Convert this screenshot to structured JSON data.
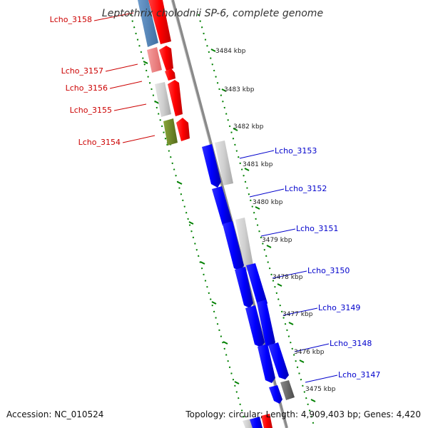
{
  "title": "Leptothrix cholodnii SP-6, complete genome",
  "footer": {
    "accession": "Accession: NC_010524",
    "summary": "Topology: circular; Length: 4,909,403 bp; Genes: 4,420"
  },
  "ticks": [
    "3484 kbp",
    "3483 kbp",
    "3482 kbp",
    "3481 kbp",
    "3480 kbp",
    "3479 kbp",
    "3478 kbp",
    "3477 kbp",
    "3476 kbp",
    "3475 kbp"
  ],
  "genes_left": [
    "Lcho_3158",
    "Lcho_3157",
    "Lcho_3156",
    "Lcho_3155",
    "Lcho_3154"
  ],
  "genes_right": [
    "Lcho_3153",
    "Lcho_3152",
    "Lcho_3151",
    "Lcho_3150",
    "Lcho_3149",
    "Lcho_3148",
    "Lcho_3147"
  ],
  "colors": {
    "forward_strand": "#ff0000",
    "reverse_strand": "#0000ff",
    "backbone": "#8a8a8a",
    "ticks": "#008000",
    "left_label": "#cc0000",
    "right_label": "#0000cc"
  }
}
